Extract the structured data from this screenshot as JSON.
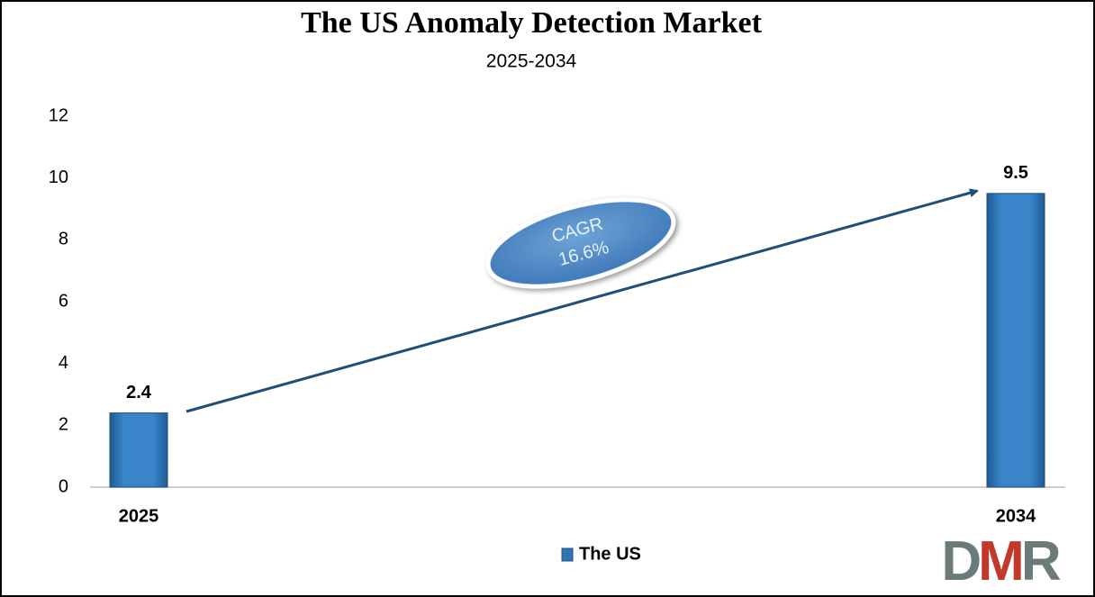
{
  "chart_data": {
    "type": "bar",
    "title": "The US Anomaly Detection Market",
    "subtitle": "2025-2034",
    "categories": [
      "2025",
      "2034"
    ],
    "series": [
      {
        "name": "The US",
        "color": "#2e75b6",
        "values": [
          2.4,
          9.5
        ]
      }
    ],
    "ylim": [
      0,
      12
    ],
    "yticks": [
      0,
      2,
      4,
      6,
      8,
      10,
      12
    ],
    "grid": false,
    "annotation": [
      "CAGR",
      "16.6%"
    ]
  },
  "logo": "DMR"
}
